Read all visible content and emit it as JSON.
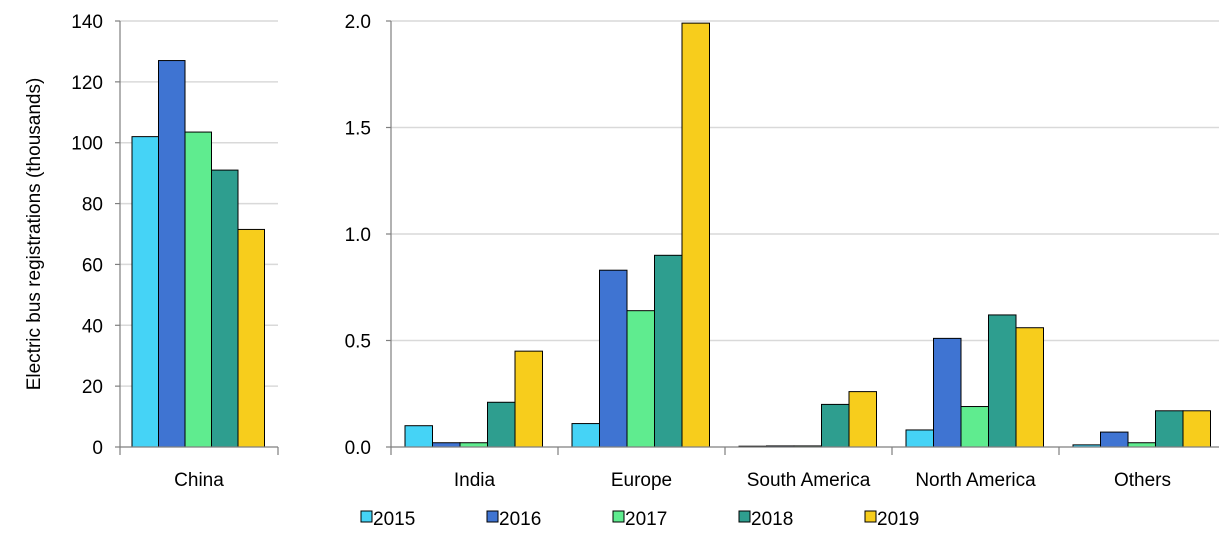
{
  "chart_data": [
    {
      "type": "bar",
      "ylabel": "Electric bus registrations (thousands)",
      "ylim": [
        0,
        140
      ],
      "yticks": [
        "0",
        "20",
        "40",
        "60",
        "80",
        "100",
        "120",
        "140"
      ],
      "grid": true,
      "categories": [
        "China"
      ],
      "series": [
        {
          "name": "2015",
          "values": [
            102
          ]
        },
        {
          "name": "2016",
          "values": [
            127
          ]
        },
        {
          "name": "2017",
          "values": [
            103.5
          ]
        },
        {
          "name": "2018",
          "values": [
            91
          ]
        },
        {
          "name": "2019",
          "values": [
            71.5
          ]
        }
      ]
    },
    {
      "type": "bar",
      "ylim": [
        0,
        2.0
      ],
      "yticks": [
        "0.0",
        "0.5",
        "1.0",
        "1.5",
        "2.0"
      ],
      "grid": true,
      "categories": [
        "India",
        "Europe",
        "South America",
        "North America",
        "Others"
      ],
      "series": [
        {
          "name": "2015",
          "values": [
            0.1,
            0.11,
            0.0,
            0.08,
            0.01
          ]
        },
        {
          "name": "2016",
          "values": [
            0.02,
            0.83,
            0.005,
            0.51,
            0.07
          ]
        },
        {
          "name": "2017",
          "values": [
            0.02,
            0.64,
            0.005,
            0.19,
            0.02
          ]
        },
        {
          "name": "2018",
          "values": [
            0.21,
            0.9,
            0.2,
            0.62,
            0.17
          ]
        },
        {
          "name": "2019",
          "values": [
            0.45,
            1.99,
            0.26,
            0.56,
            0.17
          ]
        }
      ]
    }
  ],
  "legend": {
    "position": "bottom",
    "items": [
      "2015",
      "2016",
      "2017",
      "2018",
      "2019"
    ]
  },
  "colors": {
    "2015": "#45d3f6",
    "2016": "#3f74d2",
    "2017": "#5fec8f",
    "2018": "#2e9e8f",
    "2019": "#f7cd1c",
    "grid": "#d9d9d9",
    "axis": "#7f7f7f"
  }
}
